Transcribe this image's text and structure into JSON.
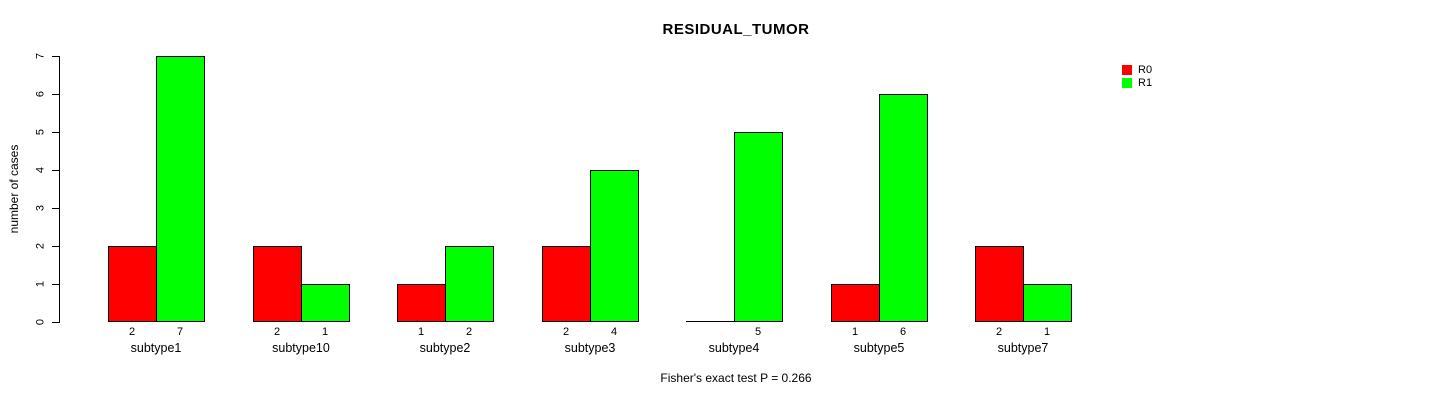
{
  "chart": {
    "title": "RESIDUAL_TUMOR",
    "ylabel": "number of cases",
    "footnote": "Fisher's exact test P = 0.266"
  },
  "legend": [
    {
      "label": "R0",
      "color": "#ff0000"
    },
    {
      "label": "R1",
      "color": "#00ff00"
    }
  ],
  "chart_data": {
    "type": "bar",
    "title": "RESIDUAL_TUMOR",
    "xlabel": "",
    "ylabel": "number of cases",
    "categories": [
      "subtype1",
      "subtype10",
      "subtype2",
      "subtype3",
      "subtype4",
      "subtype5",
      "subtype7"
    ],
    "series": [
      {
        "name": "R0",
        "color": "#ff0000",
        "values": [
          2,
          2,
          1,
          2,
          0,
          1,
          2
        ],
        "bar_labels": [
          "2",
          "2",
          "1",
          "2",
          "",
          "1",
          "2"
        ]
      },
      {
        "name": "R1",
        "color": "#00ff00",
        "values": [
          7,
          1,
          2,
          4,
          5,
          6,
          1
        ],
        "bar_labels": [
          "7",
          "1",
          "2",
          "4",
          "5",
          "6",
          "1"
        ]
      }
    ],
    "ylim": [
      0,
      7
    ],
    "yticks": [
      0,
      1,
      2,
      3,
      4,
      5,
      6,
      7
    ],
    "grid": false,
    "legend_position": "topright",
    "annotation": "Fisher's exact test P = 0.266"
  }
}
